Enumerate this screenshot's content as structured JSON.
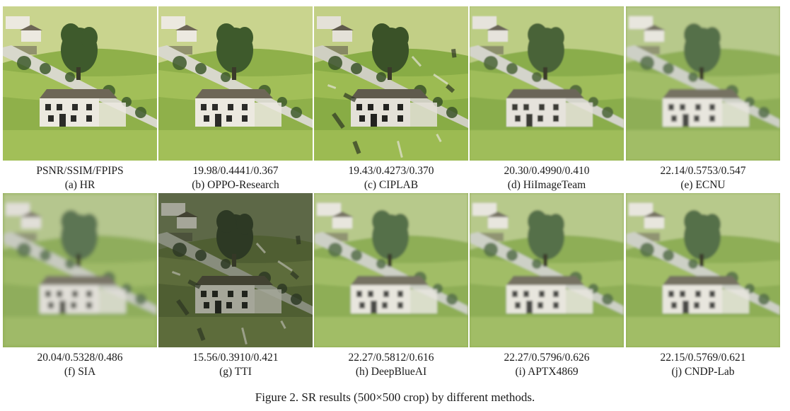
{
  "figure": {
    "caption": "Figure 2. SR results (500×500 crop) by different methods."
  },
  "panels": [
    {
      "metrics": "PSNR/SSIM/FPIPS",
      "label": "(a) HR",
      "style": "sharp"
    },
    {
      "metrics": "19.98/0.4441/0.367",
      "label": "(b) OPPO-Research",
      "style": "sharp"
    },
    {
      "metrics": "19.43/0.4273/0.370",
      "label": "(c) CIPLAB",
      "style": "artifact"
    },
    {
      "metrics": "20.30/0.4990/0.410",
      "label": "(d) HiImageTeam",
      "style": "medium"
    },
    {
      "metrics": "22.14/0.5753/0.547",
      "label": "(e) ECNU",
      "style": "smooth"
    },
    {
      "metrics": "20.04/0.5328/0.486",
      "label": "(f) SIA",
      "style": "blurry"
    },
    {
      "metrics": "15.56/0.3910/0.421",
      "label": "(g) TTI",
      "style": "distorted"
    },
    {
      "metrics": "22.27/0.5812/0.616",
      "label": "(h) DeepBlueAI",
      "style": "smooth"
    },
    {
      "metrics": "22.27/0.5796/0.626",
      "label": "(i) APTX4869",
      "style": "smooth"
    },
    {
      "metrics": "22.15/0.5769/0.621",
      "label": "(j) CNDP-Lab",
      "style": "smooth"
    }
  ]
}
